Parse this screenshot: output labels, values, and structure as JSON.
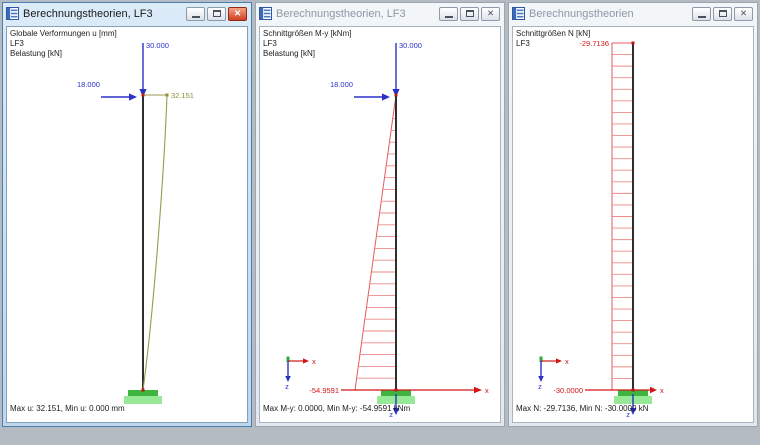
{
  "desktop": {
    "background": "#b5bbc2"
  },
  "controls": {
    "close_glyph": "✕"
  },
  "colors": {
    "load_arrow_blue": "#2a31c8",
    "result_red": "#d21616",
    "deformation_olive": "#8f8f3a",
    "support_green": "#3fb53f",
    "column_black": "#2e2e2e"
  },
  "windows": [
    {
      "title": "Berechnungstheorien, LF3",
      "state": "active",
      "info_lines": [
        "Globale Verformungen u [mm]",
        "LF3",
        "Belastung [kN]"
      ],
      "status": "Max u: 32.151, Min u: 0.000 mm",
      "labels": {
        "load_v": "30.000",
        "load_h": "18.000",
        "deform_max": "32.151"
      }
    },
    {
      "title": "Berechnungstheorien, LF3",
      "state": "inactive",
      "info_lines": [
        "Schnittgrößen M-y [kNm]",
        "LF3",
        "Belastung [kN]"
      ],
      "status": "Max M-y: 0.0000, Min M-y: -54.9591 kNm",
      "labels": {
        "load_v": "30.000",
        "load_h": "18.000",
        "moment_base": "-54.9591",
        "axis_x": "x",
        "axis_z": "z",
        "gx": "x",
        "gz": "z"
      }
    },
    {
      "title": "Berechnungstheorien",
      "state": "inactive",
      "info_lines": [
        "Schnittgrößen N [kN]",
        "LF3"
      ],
      "status": "Max N: -29.7136, Min N: -30.0000 kN",
      "labels": {
        "n_top": "-29.7136",
        "n_base": "-30.0000",
        "axis_x": "x",
        "axis_z": "z",
        "gx": "x",
        "gz": "z"
      }
    }
  ]
}
